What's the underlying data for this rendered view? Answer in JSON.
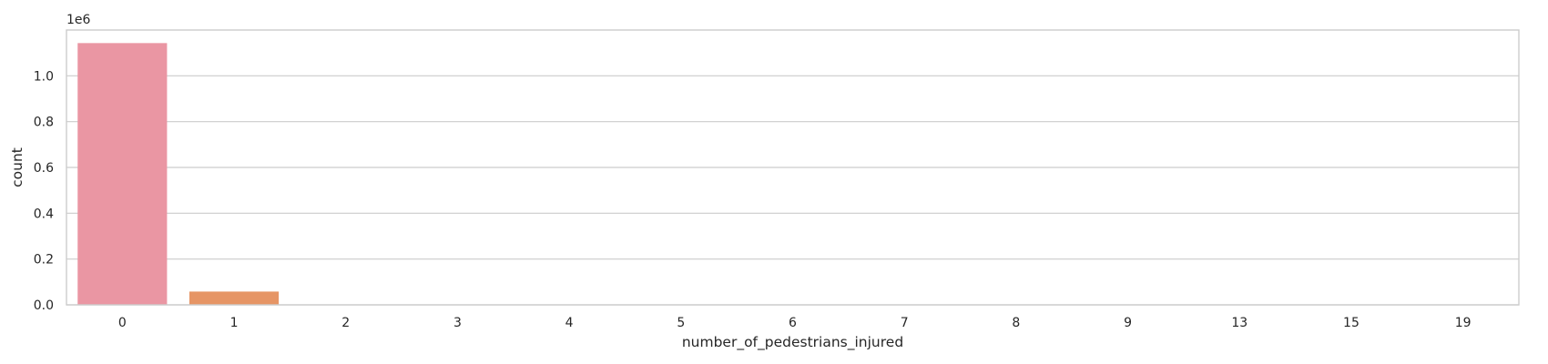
{
  "chart_data": {
    "type": "bar",
    "xlabel": "number_of_pedestrians_injured",
    "ylabel": "count",
    "y_offset_text": "1e6",
    "categories": [
      "0",
      "1",
      "2",
      "3",
      "4",
      "5",
      "6",
      "7",
      "8",
      "9",
      "13",
      "15",
      "19"
    ],
    "values": [
      1143000,
      58000,
      1500,
      150,
      30,
      10,
      5,
      3,
      2,
      1,
      1,
      1,
      1
    ],
    "colors": [
      "#ea96a3",
      "#e69565",
      "#c9a550",
      "#a8ad4d",
      "#7eb54d",
      "#4db569",
      "#50b397",
      "#52b0ac",
      "#55adc2",
      "#5ba8dd",
      "#9f9ae7",
      "#d98ae0",
      "#e88dc2"
    ],
    "ylim": [
      0,
      1200000
    ],
    "yticks": [
      0,
      200000,
      400000,
      600000,
      800000,
      1000000
    ],
    "ytick_labels": [
      "0.0",
      "0.2",
      "0.4",
      "0.6",
      "0.8",
      "1.0"
    ],
    "grid": "horizontal",
    "legend": "none"
  }
}
